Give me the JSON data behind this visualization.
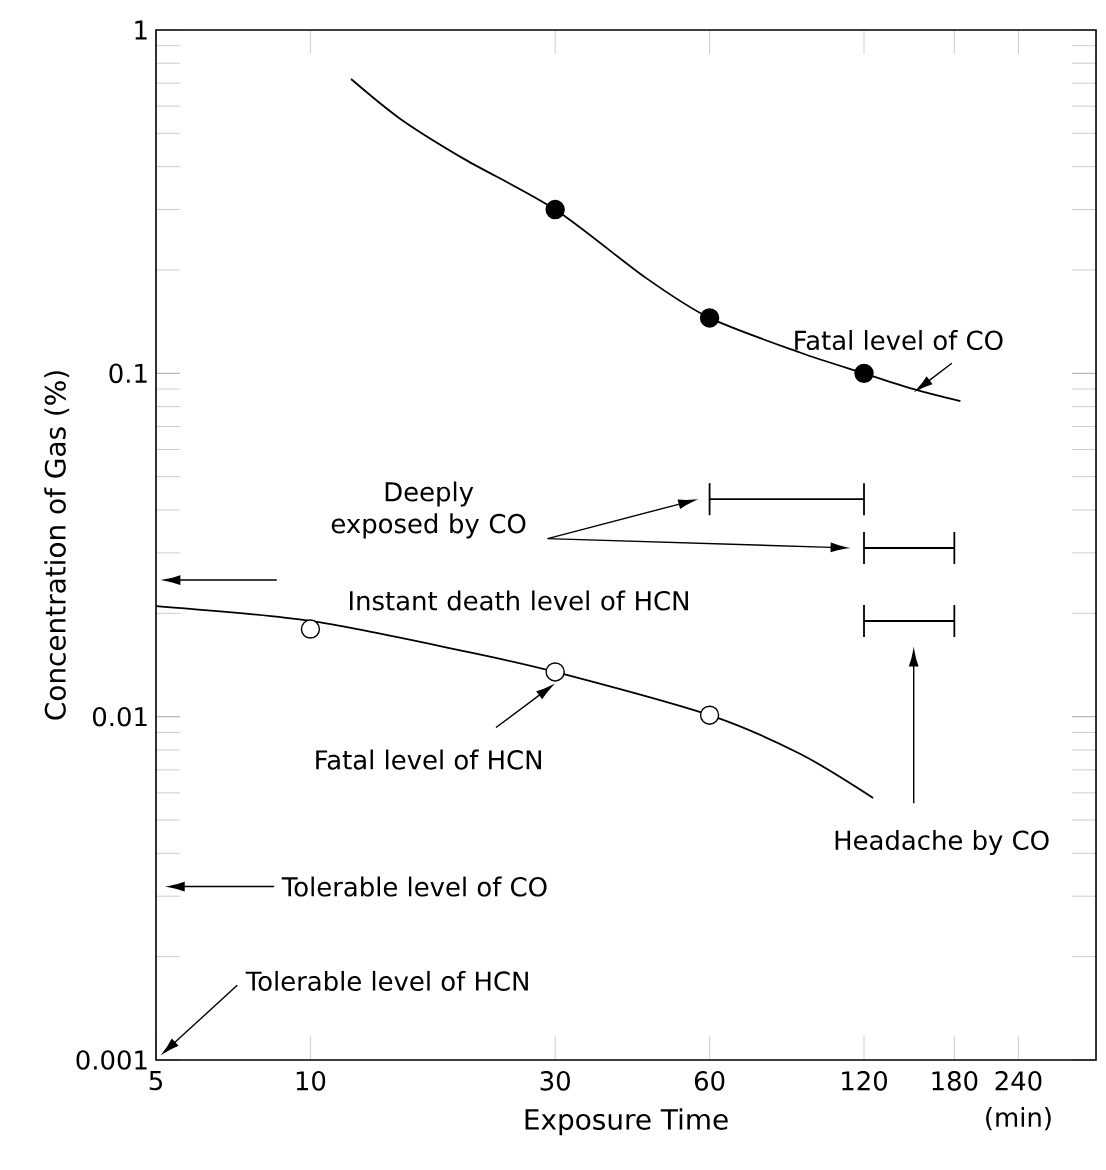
{
  "chart_data": {
    "type": "line",
    "xlabel": "Exposure Time",
    "ylabel": "Concentration of Gas (%)",
    "log": "xy",
    "xlim": [
      5,
      340
    ],
    "ylim": [
      0.001,
      1
    ],
    "xticks": [
      5,
      10,
      30,
      60,
      120,
      180,
      240
    ],
    "yticks": [
      0.001,
      0.01,
      0.1,
      1
    ],
    "series": [
      {
        "color": "#000000",
        "marker": "none",
        "x": [
          12,
          15,
          20,
          30,
          45,
          60,
          90,
          120,
          150,
          185
        ],
        "values": [
          0.72,
          0.55,
          0.42,
          0.3,
          0.19,
          0.145,
          0.115,
          0.1,
          0.09,
          0.083
        ]
      },
      {
        "color": "#000000",
        "marker": "none",
        "x": [
          5,
          10,
          20,
          30,
          60,
          90,
          125
        ],
        "values": [
          0.021,
          0.019,
          0.0155,
          0.0135,
          0.0101,
          0.0078,
          0.0058
        ]
      },
      {
        "type": "scatter",
        "color": "#000000",
        "marker": "circle",
        "x": [
          30,
          60,
          120
        ],
        "values": [
          0.3,
          0.145,
          0.1
        ]
      },
      {
        "type": "scatter",
        "color": "#ffffff",
        "marker": "circle",
        "x": [
          10,
          30,
          60
        ],
        "values": [
          0.018,
          0.0135,
          0.0101
        ]
      },
      {
        "color": "#000000",
        "marker": "none",
        "x": [
          60,
          120
        ],
        "values": [
          0.043,
          0.043
        ]
      },
      {
        "color": "#000000",
        "marker": "none",
        "x": [
          120,
          180
        ],
        "values": [
          0.031,
          0.031
        ]
      },
      {
        "color": "#000000",
        "marker": "none",
        "x": [
          120,
          180
        ],
        "values": [
          0.019,
          0.019
        ]
      }
    ],
    "annotations": [
      {
        "text": "Fatal level of CO",
        "x": 150,
        "y": 0.088
      },
      "Deeply exposed by CO",
      "Instant death level of HCN",
      {
        "text": "Fatal level of HCN",
        "x": 30,
        "y": 0.0125
      },
      "Headache by CO",
      "Tolerable level of CO",
      "Tolerable level of HCN",
      "(min)"
    ]
  }
}
